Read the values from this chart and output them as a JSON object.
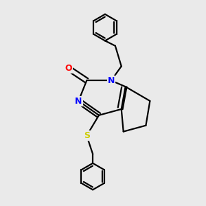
{
  "background_color": "#eaeaea",
  "bond_color": "#000000",
  "bond_width": 1.6,
  "atom_colors": {
    "N": "#0000ff",
    "O": "#ff0000",
    "S": "#cccc00",
    "C": "#000000"
  },
  "figsize": [
    3.0,
    3.0
  ],
  "dpi": 100,
  "xlim": [
    0,
    10
  ],
  "ylim": [
    0,
    10
  ]
}
